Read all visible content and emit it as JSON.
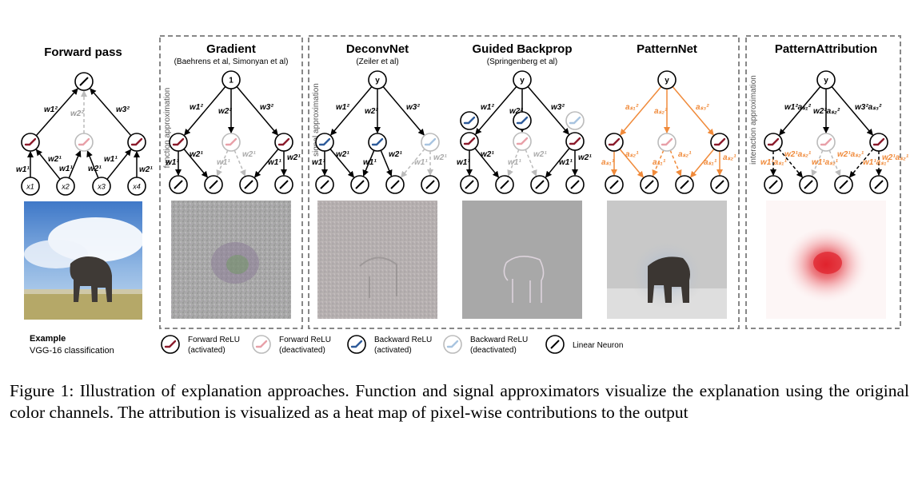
{
  "figure": {
    "forward": {
      "title": "Forward pass",
      "output_icon": "linear-neuron-icon",
      "weights_top": [
        "w1²",
        "w2²",
        "w3²"
      ],
      "weights_bottom": [
        "w1¹",
        "w2¹",
        "w1¹",
        "w2¹",
        "w1¹",
        "w2¹"
      ],
      "inputs": [
        "x1",
        "x2",
        "x3",
        "x4"
      ],
      "example_label": "Example",
      "example_sub": "VGG-16 classification"
    },
    "groups": [
      {
        "side_label": "function approximation",
        "panels": [
          {
            "title": "Gradient",
            "subtitle": "(Baehrens et al, Simonyan et al)",
            "top_node": "1",
            "weights_top": [
              "w1²",
              "w2²",
              "w3²"
            ],
            "weights_bottom": [
              "w1¹",
              "w2¹",
              "w1¹",
              "w2¹",
              "w1¹",
              "w2¹"
            ]
          }
        ]
      },
      {
        "side_label": "signal approximation",
        "panels": [
          {
            "title": "DeconvNet",
            "subtitle": "(Zeiler et al)",
            "top_node": "y",
            "weights_top": [
              "w1²",
              "w2²",
              "w3²"
            ],
            "weights_bottom": [
              "w1¹",
              "w2¹",
              "w1¹",
              "w2¹",
              "w1¹",
              "w2¹"
            ]
          },
          {
            "title": "Guided Backprop",
            "subtitle": "(Springenberg et al)",
            "top_node": "y",
            "weights_top": [
              "w1²",
              "w2²",
              "w3²"
            ],
            "weights_bottom": [
              "w1¹",
              "w2¹",
              "w1¹",
              "w2¹",
              "w1¹",
              "w2¹"
            ]
          },
          {
            "title": "PatternNet",
            "subtitle": "",
            "top_node": "y",
            "weights_top": [
              "aₛ₁²",
              "aₛ₂²",
              "aₛ₃²"
            ],
            "weights_bottom": [
              "aₛ₁¹",
              "aₛ₂¹",
              "aₛ₁¹",
              "aₛ₂¹",
              "aₛ₁¹",
              "aₛ₂¹"
            ]
          }
        ]
      },
      {
        "side_label": "interaction approximation",
        "panels": [
          {
            "title": "PatternAttribution",
            "subtitle": "",
            "top_node": "y",
            "weights_top": [
              "w1²aₛ₁²",
              "w2²aₛ₂²",
              "w3²aₛ₃²"
            ],
            "weights_bottom": [
              "w1¹aₛ₁¹",
              "w2¹aₛ₂¹",
              "w1¹aₛ₁¹",
              "w2¹aₛ₂¹",
              "w1¹aₛ₁¹",
              "w2¹aₛ₂¹"
            ]
          }
        ]
      }
    ],
    "legend": [
      {
        "label1": "Forward ReLU",
        "label2": "(activated)",
        "icon": "forward-relu-activated-icon"
      },
      {
        "label1": "Forward ReLU",
        "label2": "(deactivated)",
        "icon": "forward-relu-deactivated-icon"
      },
      {
        "label1": "Backward ReLU",
        "label2": "(activated)",
        "icon": "backward-relu-activated-icon"
      },
      {
        "label1": "Backward ReLU",
        "label2": "(deactivated)",
        "icon": "backward-relu-deactivated-icon"
      },
      {
        "label1": "Linear Neuron",
        "label2": "",
        "icon": "linear-neuron-icon"
      }
    ],
    "colors": {
      "forward_relu": "#8b1a2b",
      "forward_relu_off": "#e8a0a8",
      "backward_relu": "#2e5b9a",
      "backward_relu_off": "#a8c4e0",
      "pattern_orange": "#f08a3a",
      "attribution_red": "#e0202a",
      "inactive_gray": "#bbbbbb",
      "box_dash": "#888888"
    }
  },
  "caption": {
    "lead": "Figure 1: ",
    "text": "Illustration of explanation approaches. Function and signal approximators visualize the explanation using the original color channels. The attribution is visualized as a heat map of pixel-wise contributions to the output"
  }
}
